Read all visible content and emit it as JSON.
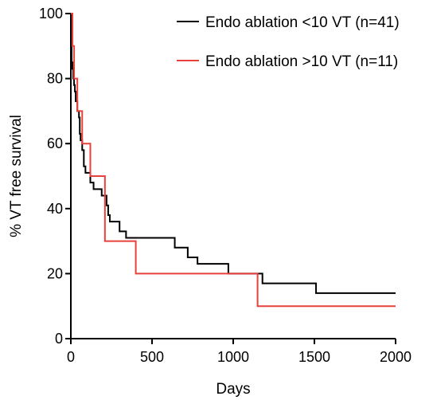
{
  "chart_data": {
    "type": "line",
    "step": true,
    "xlabel": "Days",
    "ylabel": "% VT free survival",
    "xlim": [
      0,
      2000
    ],
    "ylim": [
      0,
      100
    ],
    "xticks": [
      0,
      500,
      1000,
      1500,
      2000
    ],
    "yticks": [
      0,
      20,
      40,
      60,
      80,
      100
    ],
    "grid": false,
    "legend_position": "top-right",
    "series": [
      {
        "name": "Endo ablation <10 VT (n=41)",
        "color": "#000000",
        "x": [
          0,
          5,
          10,
          15,
          20,
          25,
          30,
          40,
          50,
          55,
          60,
          70,
          80,
          90,
          100,
          120,
          140,
          160,
          190,
          215,
          220,
          230,
          240,
          260,
          300,
          340,
          370,
          640,
          720,
          780,
          970,
          1180,
          1510,
          2000
        ],
        "y": [
          100,
          85,
          83,
          80,
          78,
          76,
          73,
          70,
          68,
          63,
          61,
          58,
          53,
          51,
          51,
          48,
          46,
          46,
          44,
          44,
          41,
          38,
          36,
          36,
          33,
          31,
          31,
          28,
          25,
          23,
          20,
          17,
          14,
          14
        ]
      },
      {
        "name": "Endo ablation >10 VT (n=11)",
        "color": "#e8413c",
        "x": [
          0,
          10,
          20,
          40,
          70,
          120,
          210,
          400,
          1150,
          2000
        ],
        "y": [
          100,
          90,
          80,
          70,
          60,
          50,
          30,
          20,
          10,
          10
        ]
      }
    ]
  }
}
